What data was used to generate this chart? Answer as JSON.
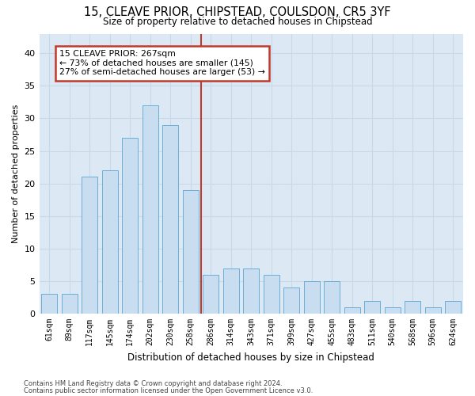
{
  "title1": "15, CLEAVE PRIOR, CHIPSTEAD, COULSDON, CR5 3YF",
  "title2": "Size of property relative to detached houses in Chipstead",
  "xlabel": "Distribution of detached houses by size in Chipstead",
  "ylabel": "Number of detached properties",
  "categories": [
    "61sqm",
    "89sqm",
    "117sqm",
    "145sqm",
    "174sqm",
    "202sqm",
    "230sqm",
    "258sqm",
    "286sqm",
    "314sqm",
    "343sqm",
    "371sqm",
    "399sqm",
    "427sqm",
    "455sqm",
    "483sqm",
    "511sqm",
    "540sqm",
    "568sqm",
    "596sqm",
    "624sqm"
  ],
  "values": [
    3,
    3,
    21,
    22,
    27,
    32,
    29,
    19,
    6,
    7,
    7,
    6,
    4,
    5,
    5,
    1,
    2,
    1,
    2,
    1,
    2
  ],
  "bar_color": "#c9ddf0",
  "bar_edge_color": "#6aaed6",
  "vline_color": "#c0392b",
  "annotation_text": "15 CLEAVE PRIOR: 267sqm\n← 73% of detached houses are smaller (145)\n27% of semi-detached houses are larger (53) →",
  "annotation_box_color": "#ffffff",
  "annotation_box_edge": "#c0392b",
  "ylim": [
    0,
    43
  ],
  "yticks": [
    0,
    5,
    10,
    15,
    20,
    25,
    30,
    35,
    40
  ],
  "grid_color": "#c8d8e8",
  "footer1": "Contains HM Land Registry data © Crown copyright and database right 2024.",
  "footer2": "Contains public sector information licensed under the Open Government Licence v3.0.",
  "fig_bg_color": "#ffffff",
  "plot_bg_color": "#dce9f5"
}
